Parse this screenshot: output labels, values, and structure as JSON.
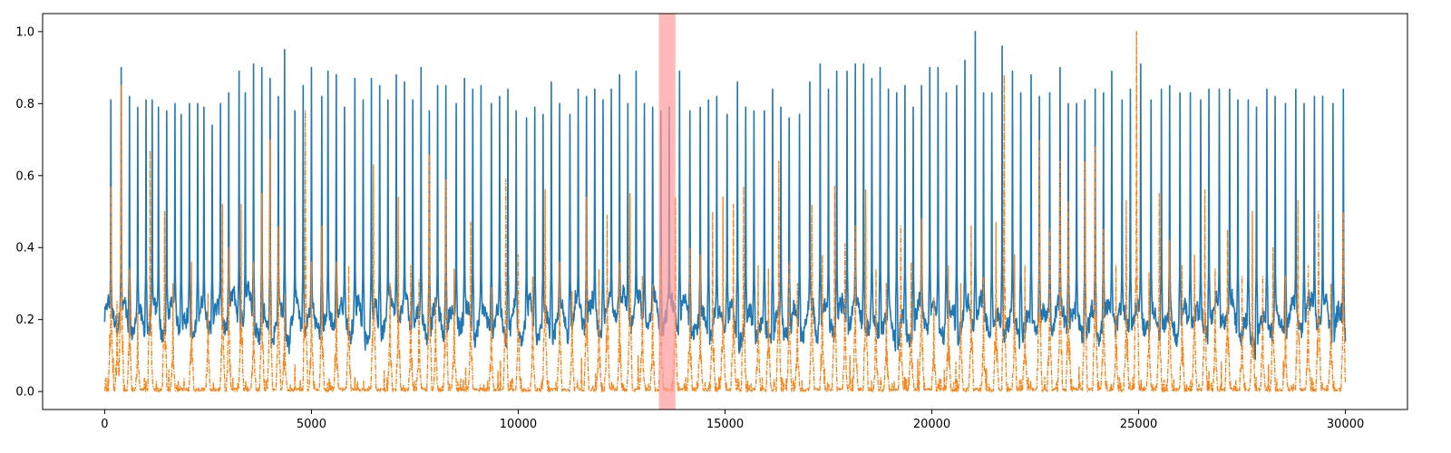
{
  "chart_data": {
    "type": "line",
    "title": "",
    "xlabel": "",
    "ylabel": "",
    "xlim": [
      -1500,
      31500
    ],
    "ylim": [
      -0.05,
      1.05
    ],
    "xticks": [
      0,
      5000,
      10000,
      15000,
      20000,
      25000,
      30000
    ],
    "xtick_labels": [
      "0",
      "5000",
      "10000",
      "15000",
      "20000",
      "25000",
      "30000"
    ],
    "yticks": [
      0.0,
      0.2,
      0.4,
      0.6,
      0.8,
      1.0
    ],
    "ytick_labels": [
      "0.0",
      "0.2",
      "0.4",
      "0.6",
      "0.8",
      "1.0"
    ],
    "grid": false,
    "legend": "none",
    "highlight_span": {
      "x0": 13400,
      "x1": 13800,
      "color": "#ff9999"
    },
    "series": [
      {
        "color": "#1f77b4",
        "style": "solid",
        "x_range": [
          0,
          30000
        ],
        "baseline_level": 0.2,
        "peak_x": [
          150,
          400,
          600,
          800,
          1000,
          1150,
          1300,
          1500,
          1700,
          1850,
          2050,
          2250,
          2400,
          2600,
          2800,
          3000,
          3250,
          3400,
          3600,
          3800,
          4000,
          4200,
          4350,
          4600,
          4800,
          5000,
          5250,
          5400,
          5600,
          5800,
          6050,
          6250,
          6450,
          6650,
          6850,
          7050,
          7250,
          7450,
          7650,
          7850,
          8050,
          8250,
          8500,
          8700,
          8900,
          9100,
          9350,
          9550,
          9750,
          9950,
          10200,
          10400,
          10600,
          10800,
          11000,
          11250,
          11450,
          11650,
          11850,
          12050,
          12250,
          12450,
          12650,
          12850,
          13050,
          13250,
          13450,
          13650,
          13900,
          14150,
          14400,
          14600,
          14800,
          15050,
          15300,
          15500,
          15700,
          15950,
          16150,
          16350,
          16550,
          16800,
          17050,
          17300,
          17500,
          17700,
          17950,
          18150,
          18350,
          18550,
          18750,
          18950,
          19150,
          19350,
          19550,
          19750,
          19950,
          20150,
          20350,
          20600,
          20800,
          21050,
          21250,
          21450,
          21700,
          21950,
          22150,
          22400,
          22600,
          22850,
          23100,
          23300,
          23500,
          23700,
          23950,
          24150,
          24350,
          24600,
          24800,
          25050,
          25300,
          25550,
          25750,
          26000,
          26250,
          26500,
          26700,
          26950,
          27200,
          27400,
          27650,
          27850,
          28100,
          28300,
          28550,
          28800,
          29000,
          29250,
          29450,
          29700,
          29950
        ],
        "peak_values": [
          0.81,
          0.9,
          0.82,
          0.79,
          0.81,
          0.81,
          0.79,
          0.78,
          0.8,
          0.77,
          0.8,
          0.8,
          0.79,
          0.74,
          0.8,
          0.83,
          0.89,
          0.83,
          0.91,
          0.9,
          0.87,
          0.82,
          0.95,
          0.78,
          0.85,
          0.9,
          0.82,
          0.89,
          0.88,
          0.79,
          0.87,
          0.81,
          0.87,
          0.85,
          0.81,
          0.88,
          0.86,
          0.81,
          0.9,
          0.78,
          0.85,
          0.85,
          0.8,
          0.87,
          0.84,
          0.85,
          0.8,
          0.82,
          0.84,
          0.78,
          0.76,
          0.79,
          0.77,
          0.86,
          0.8,
          0.77,
          0.84,
          0.82,
          0.84,
          0.81,
          0.84,
          0.88,
          0.8,
          0.89,
          0.8,
          0.79,
          0.78,
          0.79,
          0.89,
          0.78,
          0.79,
          0.81,
          0.82,
          0.77,
          0.86,
          0.79,
          0.78,
          0.78,
          0.84,
          0.79,
          0.76,
          0.77,
          0.86,
          0.91,
          0.84,
          0.89,
          0.89,
          0.91,
          0.91,
          0.87,
          0.9,
          0.84,
          0.83,
          0.85,
          0.79,
          0.85,
          0.9,
          0.9,
          0.83,
          0.85,
          0.92,
          1.0,
          0.83,
          0.83,
          0.96,
          0.89,
          0.83,
          0.88,
          0.82,
          0.83,
          0.9,
          0.8,
          0.8,
          0.81,
          0.84,
          0.83,
          0.89,
          0.81,
          0.84,
          0.91,
          0.81,
          0.84,
          0.85,
          0.83,
          0.83,
          0.81,
          0.84,
          0.84,
          0.84,
          0.81,
          0.81,
          0.79,
          0.84,
          0.82,
          0.8,
          0.84,
          0.8,
          0.82,
          0.82,
          0.8,
          0.84
        ]
      },
      {
        "color": "#ff7f0e",
        "style": "dashdot",
        "x_range": [
          0,
          30000
        ],
        "baseline_level": 0.0,
        "peak_x": [
          150,
          300,
          400,
          600,
          800,
          1100,
          1450,
          1650,
          2100,
          2500,
          2850,
          3000,
          3300,
          3600,
          3800,
          4000,
          4200,
          4350,
          4850,
          5000,
          5250,
          5600,
          5900,
          6500,
          6900,
          7100,
          7400,
          7600,
          7850,
          8000,
          8250,
          8450,
          8850,
          9350,
          9700,
          10000,
          10350,
          10650,
          11000,
          11300,
          11650,
          11950,
          12150,
          12450,
          12700,
          13000,
          13250,
          13450,
          13800,
          14150,
          14400,
          14700,
          14950,
          15200,
          15450,
          15800,
          16050,
          16300,
          16550,
          16750,
          17100,
          17350,
          17650,
          17900,
          18150,
          18400,
          18650,
          18900,
          19250,
          19500,
          19750,
          20050,
          20400,
          20700,
          20950,
          21250,
          21550,
          21750,
          22000,
          22250,
          22600,
          22850,
          23100,
          23300,
          23700,
          23950,
          24150,
          24450,
          24700,
          24950,
          25250,
          25500,
          25750,
          26050,
          26350,
          26600,
          26850,
          27150,
          27500,
          27750,
          28000,
          28250,
          28550,
          28850,
          29100,
          29350,
          29650,
          29950
        ],
        "peak_values": [
          0.57,
          0.25,
          0.85,
          0.34,
          0.22,
          0.67,
          0.5,
          0.3,
          0.36,
          0.27,
          0.52,
          0.4,
          0.52,
          0.36,
          0.55,
          0.7,
          0.46,
          0.27,
          0.78,
          0.36,
          0.46,
          0.36,
          0.35,
          0.63,
          0.3,
          0.54,
          0.35,
          0.31,
          0.66,
          0.26,
          0.59,
          0.34,
          0.47,
          0.29,
          0.59,
          0.38,
          0.32,
          0.56,
          0.36,
          0.28,
          0.54,
          0.34,
          0.49,
          0.36,
          0.55,
          0.32,
          0.3,
          0.37,
          0.54,
          0.4,
          0.38,
          0.5,
          0.54,
          0.52,
          0.57,
          0.35,
          0.34,
          0.64,
          0.36,
          0.3,
          0.52,
          0.38,
          0.57,
          0.41,
          0.46,
          0.56,
          0.34,
          0.3,
          0.46,
          0.36,
          0.48,
          0.26,
          0.35,
          0.3,
          0.46,
          0.32,
          0.47,
          0.88,
          0.38,
          0.35,
          0.7,
          0.45,
          0.64,
          0.53,
          0.64,
          0.68,
          0.45,
          0.35,
          0.53,
          1.0,
          0.33,
          0.55,
          0.42,
          0.35,
          0.38,
          0.56,
          0.34,
          0.45,
          0.32,
          0.5,
          0.32,
          0.4,
          0.32,
          0.53,
          0.35,
          0.5,
          0.3,
          0.5
        ]
      }
    ]
  }
}
